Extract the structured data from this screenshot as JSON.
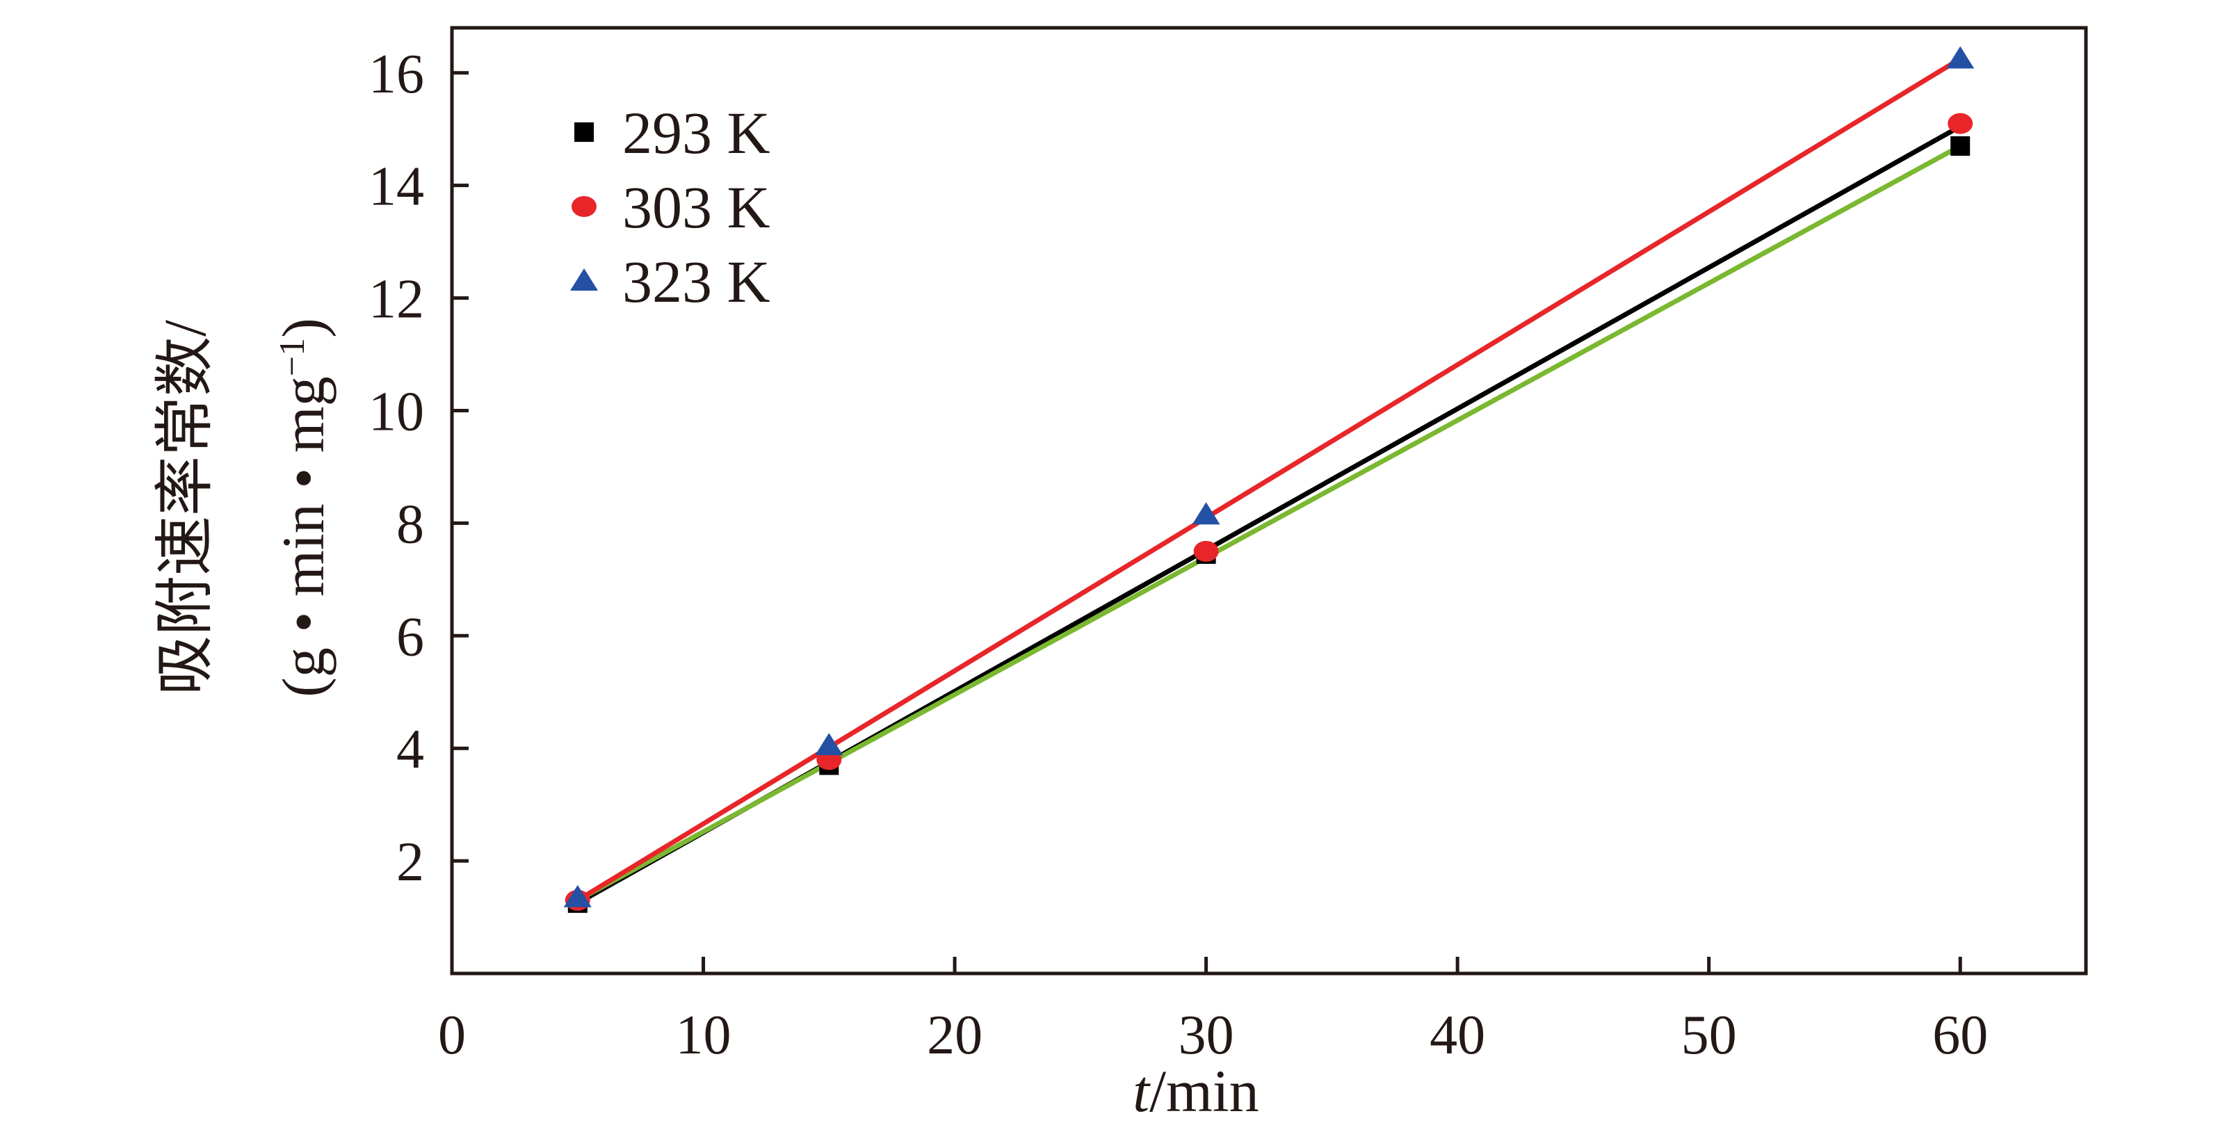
{
  "chart_data": {
    "type": "scatter",
    "title": "",
    "xlabel_italic": "t",
    "xlabel_rest": "/min",
    "ylabel_line1": "吸附速率常数/",
    "ylabel_line2_pre": "(g • min • mg",
    "ylabel_line2_sup": "−1",
    "ylabel_line2_post": ")",
    "xlim": [
      0,
      65
    ],
    "ylim": [
      0,
      16.8
    ],
    "x_ticks": [
      0,
      10,
      20,
      30,
      40,
      50,
      60
    ],
    "x_tick_labels": [
      "0",
      "10",
      "20",
      "30",
      "40",
      "50",
      "60"
    ],
    "y_ticks": [
      2,
      4,
      6,
      8,
      10,
      12,
      14,
      16
    ],
    "y_tick_labels": [
      "2",
      "4",
      "6",
      "8",
      "10",
      "12",
      "14",
      "16"
    ],
    "legend_position": "top-left",
    "series": [
      {
        "name": "293 K",
        "marker": "square",
        "color": "#000000",
        "x": [
          5,
          15,
          30,
          60
        ],
        "y": [
          1.25,
          3.7,
          7.45,
          14.7
        ],
        "fit": {
          "x": [
            5,
            60
          ],
          "y": [
            1.25,
            15.05
          ],
          "color": "#000000"
        }
      },
      {
        "name": "303 K",
        "marker": "circle",
        "color": "#e8262a",
        "x": [
          5,
          15,
          30,
          60
        ],
        "y": [
          1.3,
          3.8,
          7.5,
          15.1
        ],
        "fit": {
          "x": [
            5,
            60
          ],
          "y": [
            1.3,
            14.7
          ],
          "color": "#7ab830"
        }
      },
      {
        "name": "323 K",
        "marker": "triangle",
        "color": "#2451a4",
        "x": [
          5,
          15,
          30,
          60
        ],
        "y": [
          1.35,
          4.05,
          8.15,
          16.25
        ],
        "fit": {
          "x": [
            5,
            60
          ],
          "y": [
            1.3,
            16.25
          ],
          "color": "#e8262a"
        }
      }
    ]
  }
}
